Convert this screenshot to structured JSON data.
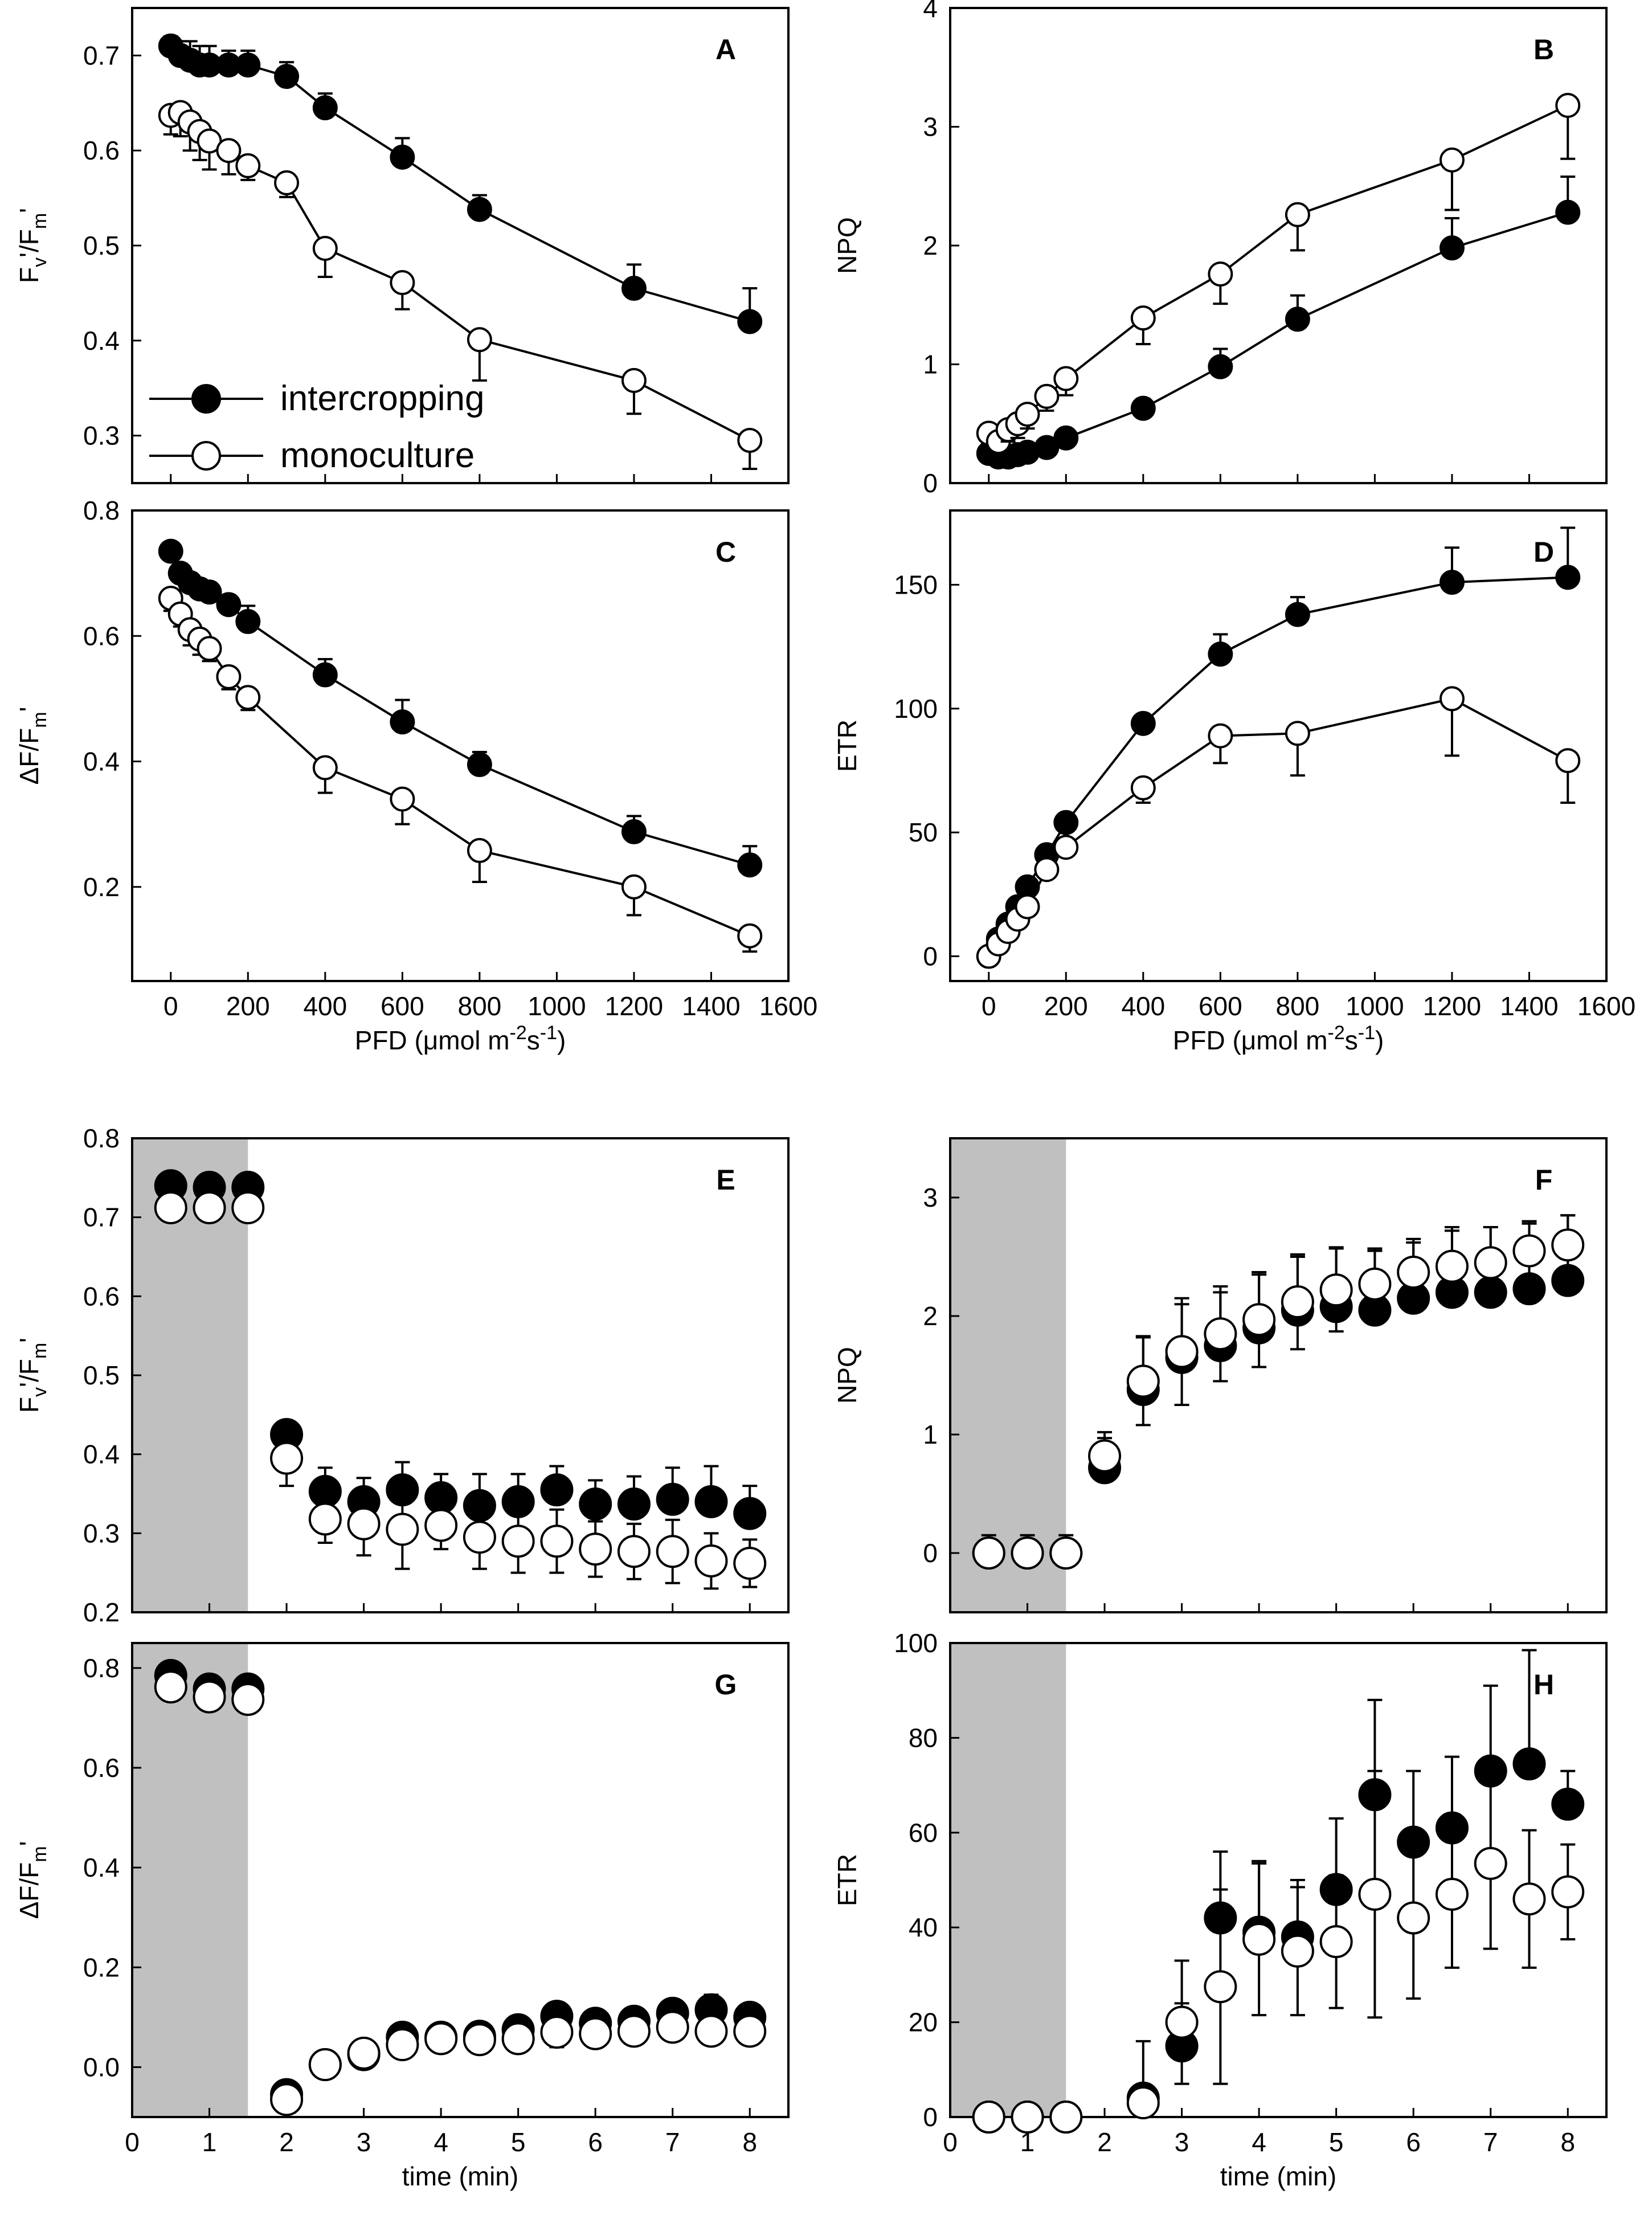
{
  "legend": {
    "intercropping": "intercropping",
    "monoculture": "monoculture"
  },
  "chart_data": [
    {
      "panel": "A",
      "type": "scatter",
      "xlabel": "",
      "ylabel": "Fv'/Fm'",
      "xlim": [
        -100,
        1600
      ],
      "ylim": [
        0.25,
        0.75
      ],
      "xticks": [],
      "yticks": [
        0.3,
        0.4,
        0.5,
        0.6,
        0.7
      ],
      "ytick_labels": [
        "0.3",
        "0.4",
        "0.5",
        "0.6",
        "0.7"
      ],
      "legend_location": "lower-left",
      "series": [
        {
          "name": "intercropping",
          "filled": true,
          "x": [
            0,
            25,
            50,
            75,
            100,
            150,
            200,
            300,
            400,
            600,
            800,
            1200,
            1500
          ],
          "y": [
            0.71,
            0.7,
            0.695,
            0.69,
            0.69,
            0.69,
            0.69,
            0.678,
            0.645,
            0.593,
            0.538,
            0.455,
            0.42
          ],
          "err": [
            0.01,
            0.015,
            0.02,
            0.02,
            0.02,
            0.015,
            0.015,
            0.015,
            0.015,
            0.02,
            0.015,
            0.025,
            0.035
          ]
        },
        {
          "name": "monoculture",
          "filled": false,
          "x": [
            0,
            25,
            50,
            75,
            100,
            150,
            200,
            300,
            400,
            600,
            800,
            1200,
            1500
          ],
          "y": [
            0.637,
            0.64,
            0.63,
            0.62,
            0.61,
            0.6,
            0.584,
            0.566,
            0.497,
            0.461,
            0.401,
            0.358,
            0.295
          ],
          "err": [
            0.02,
            0.025,
            0.03,
            0.03,
            0.03,
            0.025,
            0.015,
            0.015,
            0.03,
            0.028,
            0.043,
            0.035,
            0.03
          ]
        }
      ]
    },
    {
      "panel": "B",
      "type": "scatter",
      "xlabel": "",
      "ylabel": "NPQ",
      "xlim": [
        -100,
        1600
      ],
      "ylim": [
        0,
        4
      ],
      "xticks": [],
      "yticks": [
        0,
        1,
        2,
        3,
        4
      ],
      "ytick_labels": [
        "0",
        "1",
        "2",
        "3",
        "4"
      ],
      "series": [
        {
          "name": "intercropping",
          "filled": true,
          "x": [
            0,
            25,
            50,
            75,
            100,
            150,
            200,
            400,
            600,
            800,
            1200,
            1500
          ],
          "y": [
            0.25,
            0.22,
            0.22,
            0.24,
            0.26,
            0.3,
            0.38,
            0.63,
            0.98,
            1.38,
            1.98,
            2.28
          ],
          "err": [
            0.05,
            0.05,
            0.05,
            0.05,
            0.05,
            0.05,
            0.07,
            0.08,
            0.15,
            0.2,
            0.25,
            0.3
          ]
        },
        {
          "name": "monoculture",
          "filled": false,
          "x": [
            0,
            25,
            50,
            75,
            100,
            150,
            200,
            400,
            600,
            800,
            1200,
            1500
          ],
          "y": [
            0.42,
            0.35,
            0.45,
            0.5,
            0.58,
            0.73,
            0.88,
            1.39,
            1.76,
            2.26,
            2.72,
            3.18
          ],
          "err": [
            0.1,
            0.1,
            0.1,
            0.12,
            0.12,
            0.12,
            0.14,
            0.22,
            0.25,
            0.3,
            0.42,
            0.45
          ]
        }
      ]
    },
    {
      "panel": "C",
      "type": "scatter",
      "xlabel": "PFD (μmol m-2s-1)",
      "ylabel": "ΔF/Fm'",
      "xlim": [
        -100,
        1600
      ],
      "ylim": [
        0.05,
        0.8
      ],
      "xticks": [
        0,
        200,
        400,
        600,
        800,
        1000,
        1200,
        1400,
        1600
      ],
      "xtick_labels": [
        "0",
        "200",
        "400",
        "600",
        "800",
        "1000",
        "1200",
        "1400",
        "1600"
      ],
      "yticks": [
        0.2,
        0.4,
        0.6,
        0.8
      ],
      "ytick_labels": [
        "0.2",
        "0.4",
        "0.6",
        "0.8"
      ],
      "series": [
        {
          "name": "intercropping",
          "filled": true,
          "x": [
            0,
            25,
            50,
            75,
            100,
            150,
            200,
            400,
            600,
            800,
            1200,
            1500
          ],
          "y": [
            0.735,
            0.7,
            0.685,
            0.675,
            0.67,
            0.65,
            0.623,
            0.538,
            0.463,
            0.395,
            0.288,
            0.235
          ],
          "err": [
            0.01,
            0.015,
            0.015,
            0.015,
            0.015,
            0.015,
            0.025,
            0.025,
            0.035,
            0.02,
            0.025,
            0.03
          ]
        },
        {
          "name": "monoculture",
          "filled": false,
          "x": [
            0,
            25,
            50,
            75,
            100,
            150,
            200,
            400,
            600,
            800,
            1200,
            1500
          ],
          "y": [
            0.66,
            0.635,
            0.61,
            0.595,
            0.58,
            0.535,
            0.502,
            0.39,
            0.34,
            0.258,
            0.2,
            0.122
          ],
          "err": [
            0.02,
            0.02,
            0.025,
            0.025,
            0.02,
            0.02,
            0.02,
            0.04,
            0.04,
            0.05,
            0.045,
            0.025
          ]
        }
      ]
    },
    {
      "panel": "D",
      "type": "scatter",
      "xlabel": "PFD (μmol m-2s-1)",
      "ylabel": "ETR",
      "xlim": [
        -100,
        1600
      ],
      "ylim": [
        -10,
        180
      ],
      "xticks": [
        0,
        200,
        400,
        600,
        800,
        1000,
        1200,
        1400,
        1600
      ],
      "xtick_labels": [
        "0",
        "200",
        "400",
        "600",
        "800",
        "1000",
        "1200",
        "1400",
        "1600"
      ],
      "yticks": [
        0,
        50,
        100,
        150
      ],
      "ytick_labels": [
        "0",
        "50",
        "100",
        "150"
      ],
      "series": [
        {
          "name": "intercropping",
          "filled": true,
          "x": [
            0,
            25,
            50,
            75,
            100,
            150,
            200,
            400,
            600,
            800,
            1200,
            1500
          ],
          "y": [
            0,
            7,
            13,
            20,
            28,
            41,
            54,
            94,
            122,
            138,
            151,
            153
          ],
          "err": [
            1,
            1,
            1,
            1.5,
            2,
            2,
            3,
            3,
            8,
            7,
            14,
            20
          ]
        },
        {
          "name": "monoculture",
          "filled": false,
          "x": [
            0,
            25,
            50,
            75,
            100,
            150,
            200,
            400,
            600,
            800,
            1200,
            1500
          ],
          "y": [
            0,
            5,
            10,
            15,
            20,
            35,
            44,
            68,
            89,
            90,
            104,
            79
          ],
          "err": [
            1,
            1,
            1,
            1.5,
            1.5,
            2,
            3,
            6,
            11,
            17,
            23,
            17
          ]
        }
      ]
    },
    {
      "panel": "E",
      "type": "scatter",
      "xlabel": "",
      "ylabel": "Fv'/Fm'",
      "xlim": [
        0,
        8.5
      ],
      "ylim": [
        0.2,
        0.8
      ],
      "xticks": [],
      "yticks": [
        0.2,
        0.3,
        0.4,
        0.5,
        0.6,
        0.7,
        0.8
      ],
      "ytick_labels": [
        "0.2",
        "0.3",
        "0.4",
        "0.5",
        "0.6",
        "0.7",
        "0.8"
      ],
      "shaded_x": [
        0,
        1.5
      ],
      "series": [
        {
          "name": "intercropping",
          "filled": true,
          "x": [
            0.5,
            1,
            1.5,
            2,
            2.5,
            3,
            3.5,
            4,
            4.5,
            5,
            5.5,
            6,
            6.5,
            7,
            7.5,
            8
          ],
          "y": [
            0.74,
            0.738,
            0.738,
            0.425,
            0.353,
            0.34,
            0.355,
            0.345,
            0.335,
            0.34,
            0.355,
            0.337,
            0.337,
            0.343,
            0.34,
            0.325
          ],
          "err": [
            0.01,
            0.015,
            0.01,
            0.015,
            0.03,
            0.03,
            0.035,
            0.03,
            0.04,
            0.035,
            0.03,
            0.03,
            0.035,
            0.04,
            0.045,
            0.035
          ]
        },
        {
          "name": "monoculture",
          "filled": false,
          "x": [
            0.5,
            1,
            1.5,
            2,
            2.5,
            3,
            3.5,
            4,
            4.5,
            5,
            5.5,
            6,
            6.5,
            7,
            7.5,
            8
          ],
          "y": [
            0.712,
            0.712,
            0.712,
            0.395,
            0.318,
            0.312,
            0.305,
            0.31,
            0.295,
            0.29,
            0.29,
            0.28,
            0.277,
            0.277,
            0.265,
            0.262
          ],
          "err": [
            0.01,
            0.01,
            0.01,
            0.035,
            0.03,
            0.04,
            0.05,
            0.03,
            0.04,
            0.04,
            0.04,
            0.035,
            0.035,
            0.04,
            0.035,
            0.03
          ]
        }
      ]
    },
    {
      "panel": "F",
      "type": "scatter",
      "xlabel": "",
      "ylabel": "NPQ",
      "xlim": [
        0,
        8.5
      ],
      "ylim": [
        -0.5,
        3.5
      ],
      "xticks": [],
      "yticks": [
        0,
        1,
        2,
        3
      ],
      "ytick_labels": [
        "0",
        "1",
        "2",
        "3"
      ],
      "shaded_x": [
        0,
        1.5
      ],
      "series": [
        {
          "name": "intercropping",
          "filled": true,
          "x": [
            0.5,
            1,
            1.5,
            2,
            2.5,
            3,
            3.5,
            4,
            4.5,
            5,
            5.5,
            6,
            6.5,
            7,
            7.5,
            8
          ],
          "y": [
            0,
            0,
            0,
            0.72,
            1.38,
            1.65,
            1.75,
            1.9,
            2.05,
            2.08,
            2.05,
            2.15,
            2.2,
            2.2,
            2.23,
            2.3
          ],
          "err": [
            0.15,
            0.15,
            0.15,
            0.25,
            0.45,
            0.45,
            0.45,
            0.45,
            0.45,
            0.5,
            0.5,
            0.5,
            0.55,
            0.55,
            0.55,
            0.55
          ]
        },
        {
          "name": "monoculture",
          "filled": false,
          "x": [
            0.5,
            1,
            1.5,
            2,
            2.5,
            3,
            3.5,
            4,
            4.5,
            5,
            5.5,
            6,
            6.5,
            7,
            7.5,
            8
          ],
          "y": [
            0,
            0,
            0,
            0.82,
            1.45,
            1.7,
            1.85,
            1.97,
            2.12,
            2.22,
            2.27,
            2.37,
            2.42,
            2.45,
            2.55,
            2.6
          ],
          "err": [
            0.1,
            0.1,
            0.1,
            0.2,
            0.37,
            0.45,
            0.4,
            0.4,
            0.4,
            0.35,
            0.3,
            0.25,
            0.3,
            0.3,
            0.25,
            0.25
          ]
        }
      ]
    },
    {
      "panel": "G",
      "type": "scatter",
      "xlabel": "time (min)",
      "ylabel": "ΔF/Fm'",
      "xlim": [
        0,
        8.5
      ],
      "ylim": [
        -0.1,
        0.85
      ],
      "xticks": [
        0,
        1,
        2,
        3,
        4,
        5,
        6,
        7,
        8
      ],
      "xtick_labels": [
        "0",
        "1",
        "2",
        "3",
        "4",
        "5",
        "6",
        "7",
        "8"
      ],
      "yticks": [
        0.0,
        0.2,
        0.4,
        0.6,
        0.8
      ],
      "ytick_labels": [
        "0.0",
        "0.2",
        "0.4",
        "0.6",
        "0.8"
      ],
      "shaded_x": [
        0,
        1.5
      ],
      "series": [
        {
          "name": "intercropping",
          "filled": true,
          "x": [
            0.5,
            1,
            1.5,
            2,
            2.5,
            3,
            3.5,
            4,
            4.5,
            5,
            5.5,
            6,
            6.5,
            7,
            7.5,
            8
          ],
          "y": [
            0.785,
            0.758,
            0.758,
            -0.055,
            0.005,
            0.025,
            0.06,
            0.06,
            0.062,
            0.075,
            0.102,
            0.088,
            0.092,
            0.108,
            0.115,
            0.1
          ],
          "err": [
            0.01,
            0.01,
            0.01,
            0.015,
            0.01,
            0.015,
            0.015,
            0.01,
            0.01,
            0.015,
            0.02,
            0.015,
            0.02,
            0.025,
            0.03,
            0.02
          ]
        },
        {
          "name": "monoculture",
          "filled": false,
          "x": [
            0.5,
            1,
            1.5,
            2,
            2.5,
            3,
            3.5,
            4,
            4.5,
            5,
            5.5,
            6,
            6.5,
            7,
            7.5,
            8
          ],
          "y": [
            0.762,
            0.742,
            0.737,
            -0.065,
            0.005,
            0.028,
            0.045,
            0.057,
            0.055,
            0.057,
            0.07,
            0.067,
            0.072,
            0.08,
            0.072,
            0.072
          ],
          "err": [
            0.01,
            0.01,
            0.01,
            0.015,
            0.01,
            0.015,
            0.015,
            0.01,
            0.01,
            0.015,
            0.03,
            0.015,
            0.015,
            0.015,
            0.015,
            0.015
          ]
        }
      ]
    },
    {
      "panel": "H",
      "type": "scatter",
      "xlabel": "time (min)",
      "ylabel": "ETR",
      "xlim": [
        0,
        8.5
      ],
      "ylim": [
        0,
        100
      ],
      "xticks": [
        0,
        1,
        2,
        3,
        4,
        5,
        6,
        7,
        8
      ],
      "xtick_labels": [
        "0",
        "1",
        "2",
        "3",
        "4",
        "5",
        "6",
        "7",
        "8"
      ],
      "yticks": [
        0,
        20,
        40,
        60,
        80,
        100
      ],
      "ytick_labels": [
        "0",
        "20",
        "40",
        "60",
        "80",
        "100"
      ],
      "shaded_x": [
        0,
        1.5
      ],
      "series": [
        {
          "name": "intercropping",
          "filled": true,
          "x": [
            0.5,
            1,
            1.5,
            2.5,
            3,
            3.5,
            4,
            4.5,
            5,
            5.5,
            6,
            6.5,
            7,
            7.5,
            8
          ],
          "y": [
            0,
            0,
            0,
            4,
            15,
            42,
            39,
            38,
            48,
            68,
            58,
            61,
            73,
            74.5,
            66
          ],
          "err": [
            0.5,
            0.5,
            0.5,
            12,
            9,
            14,
            15,
            12,
            15,
            20,
            15,
            15,
            18,
            24,
            7
          ]
        },
        {
          "name": "monoculture",
          "filled": false,
          "x": [
            0.5,
            1,
            1.5,
            2.5,
            3,
            3.5,
            4,
            4.5,
            5,
            5.5,
            6,
            6.5,
            7,
            7.5,
            8
          ],
          "y": [
            0,
            0,
            0,
            3,
            20,
            27.5,
            37.5,
            35,
            37,
            47,
            42,
            47,
            53.5,
            46,
            47.5
          ],
          "err": [
            0.5,
            0.5,
            0.5,
            2,
            13,
            20.5,
            16,
            13.5,
            14,
            26,
            17,
            15.5,
            18,
            14.5,
            10
          ]
        }
      ]
    }
  ]
}
